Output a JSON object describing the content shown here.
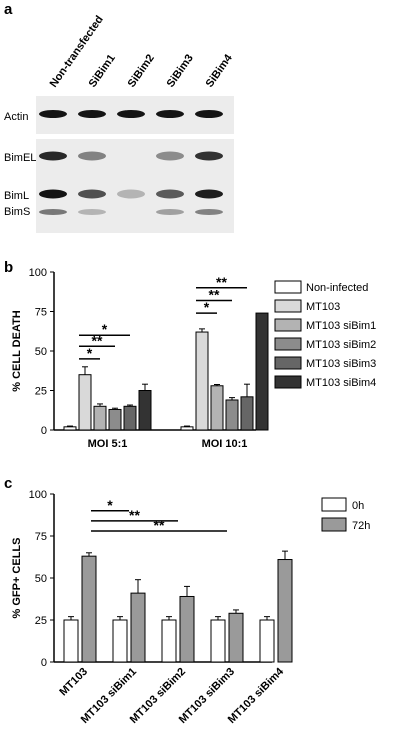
{
  "panels": {
    "a": "a",
    "b": "b",
    "c": "c"
  },
  "blot": {
    "lanes": [
      "Non-transfected",
      "SiBim1",
      "SiBim2",
      "SiBim3",
      "SiBim4"
    ],
    "rows": {
      "actin": "Actin",
      "bimel": "BimEL",
      "biml": "BimL",
      "bims": "BimS"
    },
    "intensities": {
      "actin": [
        1,
        1,
        1,
        1,
        1
      ],
      "bimel": [
        0.9,
        0.45,
        0.0,
        0.4,
        0.85
      ],
      "biml": [
        1.0,
        0.7,
        0.2,
        0.65,
        0.95
      ],
      "bims": [
        0.5,
        0.2,
        0.0,
        0.3,
        0.45
      ]
    }
  },
  "chart_data": [
    {
      "type": "bar",
      "ylabel": "% CELL DEATH",
      "ylim": [
        0,
        100
      ],
      "yticks": [
        0,
        25,
        50,
        75,
        100
      ],
      "groups": [
        "MOI 5:1",
        "MOI 10:1"
      ],
      "series": [
        {
          "name": "Non-infected",
          "color": "#ffffff",
          "values": [
            2,
            2
          ],
          "errors": [
            0.5,
            0.5
          ]
        },
        {
          "name": "MT103",
          "color": "#d9d9d9",
          "values": [
            35,
            62
          ],
          "errors": [
            5,
            2
          ]
        },
        {
          "name": "MT103 siBim1",
          "color": "#b3b3b3",
          "values": [
            15,
            28
          ],
          "errors": [
            1.5,
            0.8
          ]
        },
        {
          "name": "MT103 siBim2",
          "color": "#8c8c8c",
          "values": [
            13,
            19
          ],
          "errors": [
            0.8,
            1.5
          ]
        },
        {
          "name": "MT103 siBim3",
          "color": "#666666",
          "values": [
            15,
            21
          ],
          "errors": [
            0.8,
            8
          ]
        },
        {
          "name": "MT103 siBim4",
          "color": "#333333",
          "values": [
            25,
            74
          ],
          "errors": [
            4,
            0
          ]
        }
      ],
      "legend_position": "right",
      "annotations": [
        {
          "group": 0,
          "from": 1,
          "to": 4,
          "label": "*"
        },
        {
          "group": 0,
          "from": 1,
          "to": 3,
          "label": "**"
        },
        {
          "group": 0,
          "from": 1,
          "to": 2,
          "label": "*"
        },
        {
          "group": 1,
          "from": 1,
          "to": 4,
          "label": "**"
        },
        {
          "group": 1,
          "from": 1,
          "to": 3,
          "label": "**"
        },
        {
          "group": 1,
          "from": 1,
          "to": 2,
          "label": "*"
        }
      ]
    },
    {
      "type": "bar",
      "ylabel": "% GFP+ CELLS",
      "ylim": [
        0,
        100
      ],
      "yticks": [
        0,
        25,
        50,
        75,
        100
      ],
      "categories": [
        "MT103",
        "MT103 siBim1",
        "MT103 siBim2",
        "MT103 siBim3",
        "MT103 siBim4"
      ],
      "series": [
        {
          "name": "0h",
          "color": "#ffffff",
          "values": [
            25,
            25,
            25,
            25,
            25
          ],
          "errors": [
            2,
            2,
            2,
            2,
            2
          ]
        },
        {
          "name": "72h",
          "color": "#9a9a9a",
          "values": [
            63,
            41,
            39,
            29,
            61
          ],
          "errors": [
            2,
            8,
            6,
            2,
            5
          ]
        }
      ],
      "legend_position": "top-right",
      "annotations": [
        {
          "from": 0,
          "to": 1,
          "label": "*"
        },
        {
          "from": 0,
          "to": 2,
          "label": "**"
        },
        {
          "from": 0,
          "to": 3,
          "label": "**"
        }
      ]
    }
  ]
}
